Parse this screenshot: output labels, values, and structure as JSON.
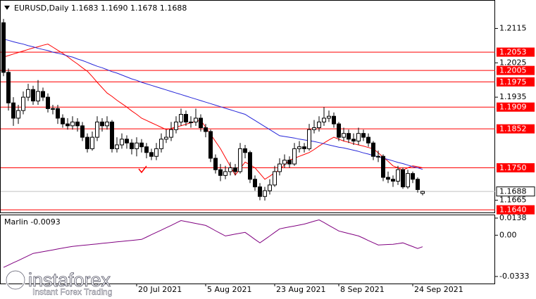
{
  "chart_data": [
    {
      "type": "candlestick",
      "title": "EURUSD,Daily  1.1683 1.1690 1.1678 1.1688",
      "categories": [
        null,
        null,
        null,
        null,
        null,
        null,
        null,
        null,
        null,
        null,
        null,
        null,
        null,
        null,
        null,
        null,
        null,
        null,
        null,
        null,
        null,
        null,
        null,
        null,
        null,
        null,
        null,
        "20 Jul 2021",
        null,
        null,
        null,
        null,
        null,
        null,
        null,
        null,
        null,
        null,
        null,
        null,
        null,
        "5 Aug 2021",
        null,
        null,
        null,
        null,
        null,
        null,
        null,
        null,
        null,
        null,
        null,
        null,
        null,
        "23 Aug 2021",
        null,
        null,
        null,
        null,
        null,
        null,
        null,
        null,
        null,
        null,
        null,
        null,
        "8 Sep 2021",
        null,
        null,
        null,
        null,
        null,
        null,
        null,
        null,
        null,
        null,
        null,
        null,
        null,
        null,
        "24 Sep 2021",
        null,
        null
      ],
      "open": [
        1.213,
        1.2,
        1.192,
        1.188,
        1.19,
        1.1935,
        1.1955,
        1.1925,
        1.195,
        1.1935,
        1.1905,
        1.1905,
        1.188,
        1.1865,
        1.186,
        1.187,
        1.186,
        1.183,
        1.18,
        1.183,
        1.187,
        1.186,
        1.187,
        1.18,
        1.181,
        1.1825,
        1.1815,
        1.18,
        1.1815,
        1.1805,
        1.179,
        1.178,
        1.18,
        1.1825,
        1.183,
        1.185,
        1.187,
        1.189,
        1.187,
        1.187,
        1.188,
        1.1855,
        1.1845,
        1.1775,
        1.1745,
        1.173,
        1.174,
        1.175,
        1.174,
        1.18,
        1.179,
        1.172,
        1.17,
        1.1675,
        1.169,
        1.1705,
        1.174,
        1.176,
        1.177,
        1.176,
        1.18,
        1.1805,
        1.18,
        1.185,
        1.1855,
        1.187,
        1.188,
        1.1885,
        1.1865,
        1.183,
        1.184,
        1.1825,
        1.182,
        1.184,
        1.183,
        1.1815,
        1.178,
        1.178,
        1.1725,
        1.172,
        1.1715,
        1.1745,
        1.17,
        1.1735,
        1.172,
        1.1683
      ],
      "high": [
        1.214,
        1.201,
        1.1935,
        1.1915,
        1.195,
        1.197,
        1.1965,
        1.198,
        1.196,
        1.1945,
        1.1915,
        1.1915,
        1.189,
        1.188,
        1.1885,
        1.188,
        1.187,
        1.184,
        1.1845,
        1.1885,
        1.188,
        1.1885,
        1.1875,
        1.183,
        1.184,
        1.1835,
        1.1825,
        1.183,
        1.1825,
        1.1815,
        1.18,
        1.1815,
        1.184,
        1.185,
        1.187,
        1.1885,
        1.1905,
        1.19,
        1.1885,
        1.1905,
        1.189,
        1.1865,
        1.185,
        1.1785,
        1.176,
        1.1755,
        1.1765,
        1.176,
        1.1815,
        1.181,
        1.1795,
        1.173,
        1.171,
        1.17,
        1.172,
        1.1755,
        1.1775,
        1.1785,
        1.178,
        1.1815,
        1.182,
        1.1815,
        1.1865,
        1.1875,
        1.1885,
        1.1909,
        1.19,
        1.1895,
        1.187,
        1.1855,
        1.185,
        1.184,
        1.1855,
        1.185,
        1.184,
        1.182,
        1.1795,
        1.1785,
        1.174,
        1.173,
        1.1755,
        1.175,
        1.1745,
        1.174,
        1.1725,
        1.169
      ],
      "low": [
        1.199,
        1.19,
        1.186,
        1.1865,
        1.189,
        1.1925,
        1.1915,
        1.1915,
        1.1925,
        1.1895,
        1.189,
        1.1865,
        1.1855,
        1.185,
        1.185,
        1.1845,
        1.182,
        1.179,
        1.1795,
        1.182,
        1.1845,
        1.185,
        1.179,
        1.179,
        1.18,
        1.18,
        1.1785,
        1.178,
        1.179,
        1.1775,
        1.177,
        1.177,
        1.179,
        1.1815,
        1.182,
        1.184,
        1.186,
        1.186,
        1.1855,
        1.186,
        1.1845,
        1.183,
        1.1765,
        1.1735,
        1.1715,
        1.172,
        1.173,
        1.173,
        1.1735,
        1.1775,
        1.171,
        1.169,
        1.1665,
        1.1664,
        1.168,
        1.17,
        1.173,
        1.175,
        1.175,
        1.1755,
        1.179,
        1.179,
        1.1795,
        1.184,
        1.1845,
        1.186,
        1.187,
        1.1855,
        1.182,
        1.182,
        1.1815,
        1.181,
        1.181,
        1.182,
        1.1805,
        1.177,
        1.1765,
        1.1715,
        1.171,
        1.17,
        1.1705,
        1.1695,
        1.1695,
        1.171,
        1.1685,
        1.1678
      ],
      "close": [
        1.2,
        1.192,
        1.188,
        1.19,
        1.1935,
        1.1955,
        1.1925,
        1.195,
        1.1935,
        1.1905,
        1.1905,
        1.188,
        1.1865,
        1.186,
        1.187,
        1.186,
        1.183,
        1.18,
        1.183,
        1.187,
        1.186,
        1.187,
        1.18,
        1.181,
        1.1825,
        1.1815,
        1.18,
        1.1815,
        1.1805,
        1.179,
        1.178,
        1.18,
        1.1825,
        1.183,
        1.185,
        1.187,
        1.189,
        1.187,
        1.187,
        1.188,
        1.1855,
        1.1845,
        1.1775,
        1.1745,
        1.173,
        1.174,
        1.175,
        1.174,
        1.18,
        1.179,
        1.172,
        1.17,
        1.1675,
        1.169,
        1.1705,
        1.174,
        1.176,
        1.177,
        1.176,
        1.18,
        1.1805,
        1.18,
        1.185,
        1.1855,
        1.187,
        1.188,
        1.1885,
        1.1865,
        1.183,
        1.184,
        1.1825,
        1.182,
        1.184,
        1.183,
        1.1815,
        1.178,
        1.178,
        1.1725,
        1.172,
        1.1715,
        1.1745,
        1.17,
        1.1735,
        1.172,
        1.1693,
        1.1688
      ],
      "overlays": [
        {
          "color": "#ff0000",
          "values": [
            1.204,
            1.2044,
            1.2048,
            1.2052,
            1.2056,
            1.206,
            1.2064,
            1.2067,
            1.2071,
            1.2074,
            1.2066,
            1.2058,
            1.205,
            1.2041,
            1.2031,
            1.2022,
            1.2012,
            1.2003,
            1.1989,
            1.1974,
            1.196,
            1.1946,
            1.1937,
            1.1927,
            1.1918,
            1.1909,
            1.1899,
            1.189,
            1.188,
            1.1874,
            1.1868,
            1.1862,
            1.1856,
            1.185,
            1.1853,
            1.1857,
            1.186,
            1.1864,
            1.1868,
            1.1871,
            1.1875,
            1.1856,
            1.1838,
            1.1819,
            1.18,
            1.1777,
            1.1754,
            1.1731,
            1.1748,
            1.1765,
            1.1758,
            1.175,
            1.1735,
            1.172,
            1.1728,
            1.1737,
            1.1745,
            1.1758,
            1.177,
            1.1775,
            1.178,
            1.1785,
            1.179,
            1.1798,
            1.1807,
            1.1815,
            1.1823,
            1.183,
            1.1825,
            1.182,
            1.1817,
            1.1813,
            1.181,
            1.1807,
            1.1803,
            1.18,
            1.1789,
            1.1778,
            1.1767,
            1.1755,
            1.175,
            1.1744,
            1.175,
            1.1755,
            1.1753,
            1.175
          ]
        },
        {
          "color": "#2626d9",
          "values": [
            1.2087,
            1.2084,
            1.208,
            1.2077,
            1.2074,
            1.207,
            1.2067,
            1.2063,
            1.206,
            1.2057,
            1.2053,
            1.205,
            1.2047,
            1.2043,
            1.204,
            1.2035,
            1.2031,
            1.2026,
            1.2021,
            1.2016,
            1.2012,
            1.2007,
            1.2002,
            1.1998,
            1.1993,
            1.1988,
            1.1983,
            1.1979,
            1.1974,
            1.197,
            1.1966,
            1.1962,
            1.1958,
            1.1954,
            1.195,
            1.1946,
            1.1942,
            1.1938,
            1.1934,
            1.193,
            1.1926,
            1.1922,
            1.1918,
            1.1914,
            1.191,
            1.1906,
            1.1902,
            1.1898,
            1.1894,
            1.189,
            1.1882,
            1.1874,
            1.1866,
            1.1858,
            1.185,
            1.1842,
            1.1834,
            1.1832,
            1.183,
            1.1828,
            1.1825,
            1.1823,
            1.1821,
            1.1819,
            1.1816,
            1.1813,
            1.181,
            1.1807,
            1.1804,
            1.1802,
            1.1799,
            1.1796,
            1.1793,
            1.1789,
            1.1786,
            1.1782,
            1.1779,
            1.1775,
            1.1772,
            1.1768,
            1.1764,
            1.1761,
            1.1757,
            1.1753,
            1.175,
            1.1746
          ]
        }
      ],
      "levels": [
        1.2053,
        1.2005,
        1.1975,
        1.1909,
        1.1852,
        {
          "value": 1.175,
          "label": "1.1750"
        },
        {
          "value": 1.164,
          "label": "1.1640"
        }
      ],
      "level_color": "#ff0000",
      "last_price": 1.1688,
      "ylim": [
        1.1633,
        1.2184
      ],
      "yticks": [
        1.2115,
        1.2025,
        1.1935,
        1.1665
      ]
    },
    {
      "type": "line",
      "title": "Marlin -0.0093",
      "series": [
        {
          "color": "#800080",
          "values": [
            -0.026,
            -0.0241,
            -0.0222,
            -0.0204,
            -0.0185,
            -0.0166,
            -0.0147,
            -0.014,
            -0.0133,
            -0.0126,
            -0.0119,
            -0.0111,
            -0.0104,
            -0.0097,
            -0.009,
            -0.0086,
            -0.0082,
            -0.0078,
            -0.0074,
            -0.007,
            -0.0066,
            -0.0062,
            -0.0058,
            -0.0054,
            -0.005,
            -0.0046,
            -0.0042,
            -0.0038,
            -0.0034,
            -0.0015,
            0.0004,
            0.0023,
            0.0041,
            0.006,
            0.0079,
            0.0099,
            0.0118,
            0.011,
            0.0102,
            0.0095,
            0.0087,
            0.0079,
            0.0058,
            0.0036,
            0.0015,
            -0.0006,
            0.0001,
            0.0009,
            0.0016,
            0.0023,
            -0.0005,
            -0.0034,
            -0.0062,
            -0.0034,
            -0.0006,
            0.0023,
            0.0051,
            0.0059,
            0.0067,
            0.0074,
            0.0082,
            0.009,
            0.0101,
            0.0113,
            0.0124,
            0.0102,
            0.0079,
            0.0057,
            0.0034,
            0.0024,
            0.0014,
            0.0004,
            -0.0006,
            -0.0024,
            -0.0043,
            -0.0061,
            -0.0079,
            -0.0077,
            -0.0075,
            -0.0073,
            -0.0068,
            -0.0062,
            -0.0077,
            -0.0092,
            -0.0107,
            -0.0093
          ]
        }
      ],
      "ylim": [
        -0.0333,
        0.0138
      ],
      "yticks": [
        0.0138,
        {
          "value": 0,
          "label": "0.00"
        },
        -0.0333
      ]
    }
  ],
  "watermark": {
    "brand": "instaforex",
    "tagline": "Instant Forex Trading"
  }
}
